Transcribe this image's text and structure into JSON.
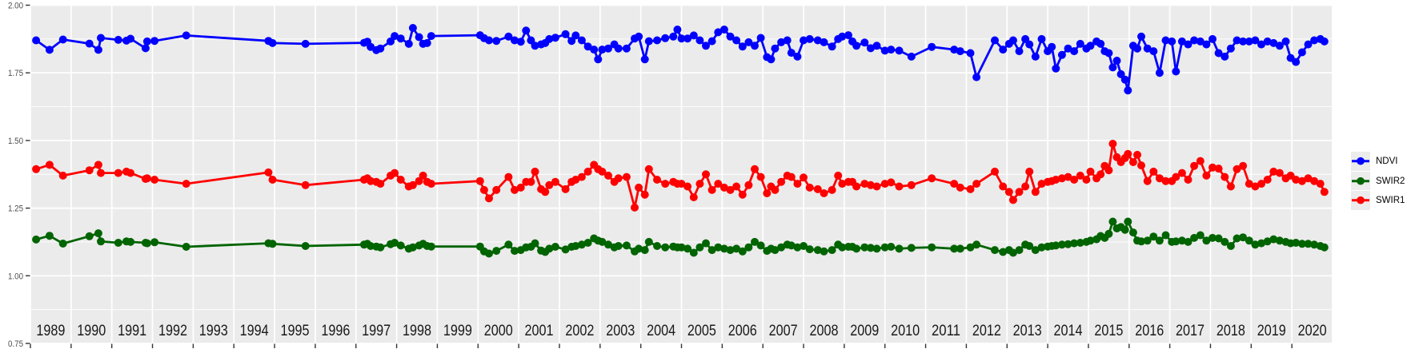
{
  "background": {
    "page": "#FFFFFF",
    "panel": "#EBEBEB",
    "grid": "#FFFFFF",
    "tick": "#333333",
    "y_label_color": "#4d4d4d",
    "x_label_color": "#1a1a1a"
  },
  "y_axis": {
    "tick_labels": [
      "2.00",
      "1.75",
      "1.50",
      "1.25",
      "1.00",
      "0.75"
    ],
    "tick_values": [
      2.0,
      1.75,
      1.5,
      1.25,
      1.0,
      0.75
    ]
  },
  "x_axis": {
    "tick_labels": [
      "1989",
      "1990",
      "1991",
      "1992",
      "1993",
      "1994",
      "1995",
      "1996",
      "1997",
      "1998",
      "1999",
      "2000",
      "2001",
      "2002",
      "2003",
      "2004",
      "2005",
      "2006",
      "2007",
      "2008",
      "2009",
      "2010",
      "2011",
      "2012",
      "2013",
      "2014",
      "2015",
      "2016",
      "2017",
      "2018",
      "2019",
      "2020"
    ]
  },
  "chart_data": {
    "type": "line",
    "title": "",
    "xlabel": "",
    "ylabel": "",
    "xlim": [
      1989,
      2021
    ],
    "ylim": [
      0.75,
      2.0
    ],
    "grid": "white major+minor horizontal, white yearly vertical on gray panel",
    "legend_position": "right",
    "x": [
      1989.14,
      1989.47,
      1989.8,
      1990.45,
      1990.67,
      1990.73,
      1991.16,
      1991.36,
      1991.46,
      1991.83,
      1991.87,
      1992.05,
      1992.83,
      1994.85,
      1994.95,
      1995.76,
      1997.2,
      1997.28,
      1997.36,
      1997.5,
      1997.6,
      1997.85,
      1997.95,
      1998.1,
      1998.3,
      1998.4,
      1998.55,
      1998.65,
      1998.75,
      1998.85,
      2000.05,
      2000.15,
      2000.27,
      2000.45,
      2000.75,
      2000.9,
      2001.05,
      2001.18,
      2001.3,
      2001.4,
      2001.55,
      2001.65,
      2001.75,
      2001.9,
      2002.15,
      2002.3,
      2002.4,
      2002.55,
      2002.7,
      2002.85,
      2002.95,
      2003.05,
      2003.2,
      2003.35,
      2003.45,
      2003.65,
      2003.85,
      2003.95,
      2004.1,
      2004.2,
      2004.4,
      2004.6,
      2004.8,
      2004.9,
      2005.0,
      2005.15,
      2005.3,
      2005.45,
      2005.6,
      2005.75,
      2005.9,
      2006.05,
      2006.2,
      2006.35,
      2006.5,
      2006.65,
      2006.8,
      2006.95,
      2007.1,
      2007.2,
      2007.3,
      2007.45,
      2007.6,
      2007.7,
      2007.85,
      2008.0,
      2008.15,
      2008.35,
      2008.5,
      2008.7,
      2008.85,
      2008.95,
      2009.1,
      2009.2,
      2009.3,
      2009.5,
      2009.65,
      2009.8,
      2010.0,
      2010.15,
      2010.35,
      2010.65,
      2011.15,
      2011.7,
      2011.85,
      2012.1,
      2012.25,
      2012.7,
      2012.9,
      2013.05,
      2013.15,
      2013.3,
      2013.45,
      2013.55,
      2013.7,
      2013.85,
      2014.0,
      2014.1,
      2014.2,
      2014.35,
      2014.5,
      2014.65,
      2014.8,
      2014.95,
      2015.05,
      2015.2,
      2015.3,
      2015.4,
      2015.5,
      2015.6,
      2015.7,
      2015.8,
      2015.9,
      2015.97,
      2016.1,
      2016.2,
      2016.3,
      2016.45,
      2016.6,
      2016.75,
      2016.9,
      2017.05,
      2017.15,
      2017.3,
      2017.45,
      2017.6,
      2017.75,
      2017.9,
      2018.05,
      2018.2,
      2018.35,
      2018.5,
      2018.65,
      2018.8,
      2018.95,
      2019.1,
      2019.25,
      2019.4,
      2019.55,
      2019.7,
      2019.85,
      2019.97,
      2020.1,
      2020.25,
      2020.4,
      2020.55,
      2020.7,
      2020.8
    ],
    "series": [
      {
        "name": "NDVI",
        "color": "#0000FF",
        "values": [
          1.87,
          1.835,
          1.873,
          1.858,
          1.835,
          1.879,
          1.872,
          1.869,
          1.876,
          1.841,
          1.866,
          1.868,
          1.888,
          1.868,
          1.86,
          1.857,
          1.861,
          1.865,
          1.846,
          1.834,
          1.84,
          1.866,
          1.886,
          1.877,
          1.857,
          1.916,
          1.882,
          1.857,
          1.86,
          1.886,
          1.889,
          1.878,
          1.87,
          1.868,
          1.884,
          1.87,
          1.865,
          1.906,
          1.87,
          1.85,
          1.855,
          1.86,
          1.875,
          1.88,
          1.893,
          1.868,
          1.888,
          1.87,
          1.847,
          1.836,
          1.8,
          1.836,
          1.84,
          1.855,
          1.84,
          1.84,
          1.877,
          1.884,
          1.8,
          1.867,
          1.87,
          1.878,
          1.884,
          1.91,
          1.877,
          1.877,
          1.888,
          1.87,
          1.85,
          1.867,
          1.9,
          1.91,
          1.884,
          1.87,
          1.847,
          1.863,
          1.85,
          1.879,
          1.808,
          1.8,
          1.84,
          1.863,
          1.87,
          1.824,
          1.81,
          1.87,
          1.875,
          1.87,
          1.863,
          1.847,
          1.875,
          1.884,
          1.889,
          1.866,
          1.85,
          1.862,
          1.841,
          1.85,
          1.832,
          1.836,
          1.832,
          1.81,
          1.846,
          1.836,
          1.83,
          1.823,
          1.734,
          1.87,
          1.836,
          1.857,
          1.87,
          1.83,
          1.875,
          1.855,
          1.81,
          1.875,
          1.83,
          1.846,
          1.766,
          1.816,
          1.84,
          1.83,
          1.857,
          1.84,
          1.85,
          1.866,
          1.857,
          1.83,
          1.823,
          1.77,
          1.795,
          1.745,
          1.725,
          1.685,
          1.85,
          1.84,
          1.884,
          1.84,
          1.83,
          1.75,
          1.87,
          1.866,
          1.755,
          1.866,
          1.855,
          1.87,
          1.866,
          1.855,
          1.875,
          1.823,
          1.81,
          1.84,
          1.87,
          1.866,
          1.866,
          1.87,
          1.855,
          1.866,
          1.86,
          1.85,
          1.866,
          1.805,
          1.79,
          1.826,
          1.855,
          1.87,
          1.875,
          1.866
        ]
      },
      {
        "name": "SWIR2",
        "color": "#006400",
        "values": [
          1.134,
          1.148,
          1.119,
          1.146,
          1.157,
          1.127,
          1.122,
          1.127,
          1.125,
          1.122,
          1.12,
          1.124,
          1.107,
          1.12,
          1.118,
          1.11,
          1.115,
          1.118,
          1.11,
          1.108,
          1.105,
          1.117,
          1.122,
          1.112,
          1.1,
          1.105,
          1.112,
          1.118,
          1.11,
          1.108,
          1.108,
          1.09,
          1.082,
          1.092,
          1.115,
          1.092,
          1.095,
          1.105,
          1.107,
          1.12,
          1.093,
          1.088,
          1.1,
          1.107,
          1.097,
          1.107,
          1.11,
          1.115,
          1.122,
          1.138,
          1.13,
          1.125,
          1.115,
          1.105,
          1.11,
          1.112,
          1.09,
          1.1,
          1.095,
          1.125,
          1.11,
          1.105,
          1.108,
          1.105,
          1.105,
          1.1,
          1.085,
          1.105,
          1.12,
          1.095,
          1.105,
          1.1,
          1.095,
          1.1,
          1.09,
          1.105,
          1.125,
          1.112,
          1.092,
          1.1,
          1.095,
          1.105,
          1.115,
          1.112,
          1.105,
          1.11,
          1.098,
          1.095,
          1.09,
          1.095,
          1.115,
          1.105,
          1.107,
          1.107,
          1.1,
          1.105,
          1.103,
          1.1,
          1.105,
          1.107,
          1.1,
          1.103,
          1.105,
          1.1,
          1.1,
          1.105,
          1.115,
          1.095,
          1.088,
          1.095,
          1.085,
          1.095,
          1.115,
          1.11,
          1.095,
          1.105,
          1.108,
          1.11,
          1.112,
          1.115,
          1.117,
          1.12,
          1.122,
          1.125,
          1.13,
          1.135,
          1.147,
          1.14,
          1.155,
          1.2,
          1.175,
          1.18,
          1.17,
          1.2,
          1.16,
          1.13,
          1.127,
          1.13,
          1.145,
          1.13,
          1.15,
          1.125,
          1.127,
          1.13,
          1.125,
          1.14,
          1.15,
          1.13,
          1.14,
          1.138,
          1.125,
          1.11,
          1.138,
          1.142,
          1.13,
          1.115,
          1.12,
          1.127,
          1.135,
          1.13,
          1.125,
          1.12,
          1.122,
          1.118,
          1.118,
          1.115,
          1.11,
          1.105
        ]
      },
      {
        "name": "SWIR1",
        "color": "#FF0000",
        "values": [
          1.394,
          1.41,
          1.37,
          1.39,
          1.41,
          1.38,
          1.38,
          1.385,
          1.38,
          1.358,
          1.36,
          1.355,
          1.34,
          1.382,
          1.355,
          1.335,
          1.355,
          1.36,
          1.35,
          1.347,
          1.34,
          1.37,
          1.38,
          1.355,
          1.33,
          1.335,
          1.35,
          1.37,
          1.347,
          1.34,
          1.35,
          1.317,
          1.286,
          1.317,
          1.365,
          1.317,
          1.326,
          1.347,
          1.347,
          1.385,
          1.32,
          1.31,
          1.335,
          1.347,
          1.32,
          1.347,
          1.355,
          1.365,
          1.385,
          1.41,
          1.394,
          1.385,
          1.37,
          1.347,
          1.36,
          1.365,
          1.252,
          1.326,
          1.3,
          1.394,
          1.355,
          1.34,
          1.347,
          1.34,
          1.34,
          1.33,
          1.29,
          1.34,
          1.375,
          1.317,
          1.34,
          1.326,
          1.317,
          1.33,
          1.3,
          1.335,
          1.394,
          1.365,
          1.305,
          1.33,
          1.317,
          1.347,
          1.37,
          1.365,
          1.34,
          1.363,
          1.326,
          1.32,
          1.305,
          1.317,
          1.37,
          1.34,
          1.347,
          1.347,
          1.33,
          1.34,
          1.335,
          1.33,
          1.34,
          1.345,
          1.33,
          1.335,
          1.36,
          1.34,
          1.326,
          1.32,
          1.34,
          1.385,
          1.33,
          1.31,
          1.28,
          1.31,
          1.33,
          1.385,
          1.31,
          1.34,
          1.347,
          1.35,
          1.355,
          1.36,
          1.365,
          1.355,
          1.37,
          1.355,
          1.385,
          1.36,
          1.375,
          1.406,
          1.39,
          1.488,
          1.438,
          1.42,
          1.435,
          1.45,
          1.42,
          1.447,
          1.408,
          1.35,
          1.385,
          1.36,
          1.35,
          1.35,
          1.365,
          1.38,
          1.355,
          1.406,
          1.424,
          1.37,
          1.4,
          1.396,
          1.365,
          1.33,
          1.394,
          1.406,
          1.34,
          1.33,
          1.34,
          1.355,
          1.385,
          1.38,
          1.36,
          1.37,
          1.355,
          1.35,
          1.36,
          1.35,
          1.34,
          1.31
        ]
      }
    ]
  }
}
